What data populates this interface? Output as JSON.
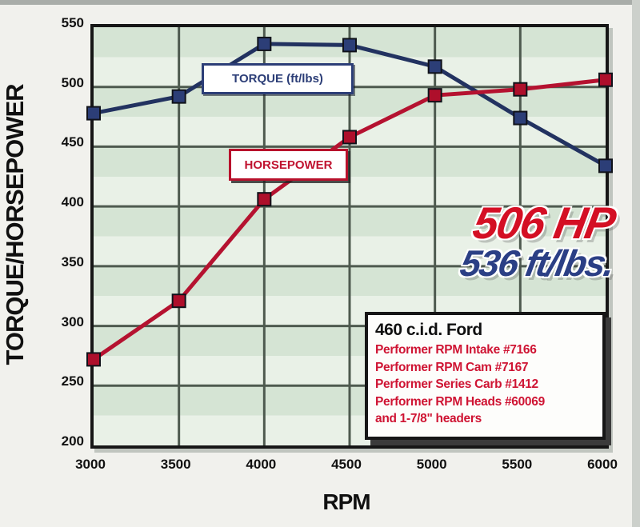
{
  "y_axis": {
    "title": "TORQUE/HORSEPOWER",
    "ticks": [
      "550",
      "500",
      "450",
      "400",
      "350",
      "300",
      "250",
      "200"
    ]
  },
  "x_axis": {
    "title": "RPM",
    "ticks": [
      "3000",
      "3500",
      "4000",
      "4500",
      "5000",
      "5500",
      "6000"
    ]
  },
  "legend": {
    "torque_label": "TORQUE (ft/lbs)",
    "horsepower_label": "HORSEPOWER"
  },
  "callout": {
    "hp": "506 HP",
    "torque": "536 ft/lbs."
  },
  "info_box": {
    "title": "460 c.i.d. Ford",
    "lines": [
      "Performer RPM Intake #7166",
      "Performer RPM Cam #7167",
      "Performer Series Carb #1412",
      "Performer RPM Heads #60069",
      "and 1-7/8\" headers"
    ]
  },
  "colors": {
    "torque_line": "#223260",
    "torque_marker": "#2c3e77",
    "horsepower_line": "#b51230",
    "horsepower_marker": "#ae0f2b",
    "grid": "#4e5a4f",
    "plot_band_dark": "#d5e4d4",
    "plot_band_light": "#e9f1e7",
    "callout_hp": "#d40f24",
    "callout_torque": "#2b3f85"
  },
  "chart_data": {
    "type": "line",
    "x": [
      3000,
      3500,
      4000,
      4500,
      5000,
      5500,
      6000
    ],
    "series": [
      {
        "name": "TORQUE (ft/lbs)",
        "color_line": "#223260",
        "color_marker": "#2c3e77",
        "values": [
          478,
          492,
          536,
          535,
          517,
          474,
          434
        ]
      },
      {
        "name": "HORSEPOWER",
        "color_line": "#b51230",
        "color_marker": "#ae0f2b",
        "values": [
          272,
          321,
          406,
          458,
          493,
          498,
          506
        ]
      }
    ],
    "title": "",
    "xlabel": "RPM",
    "ylabel": "TORQUE/HORSEPOWER",
    "xlim": [
      3000,
      6000
    ],
    "ylim": [
      200,
      550
    ],
    "x_gridstep": 500,
    "y_gridstep": 50,
    "grid": true,
    "legend_position": "inside-plot",
    "peak_hp": 506,
    "peak_torque_ftlbs": 536,
    "x_ticks": [
      3000,
      3500,
      4000,
      4500,
      5000,
      5500,
      6000
    ],
    "y_ticks": [
      550,
      500,
      450,
      400,
      350,
      300,
      250,
      200
    ]
  }
}
